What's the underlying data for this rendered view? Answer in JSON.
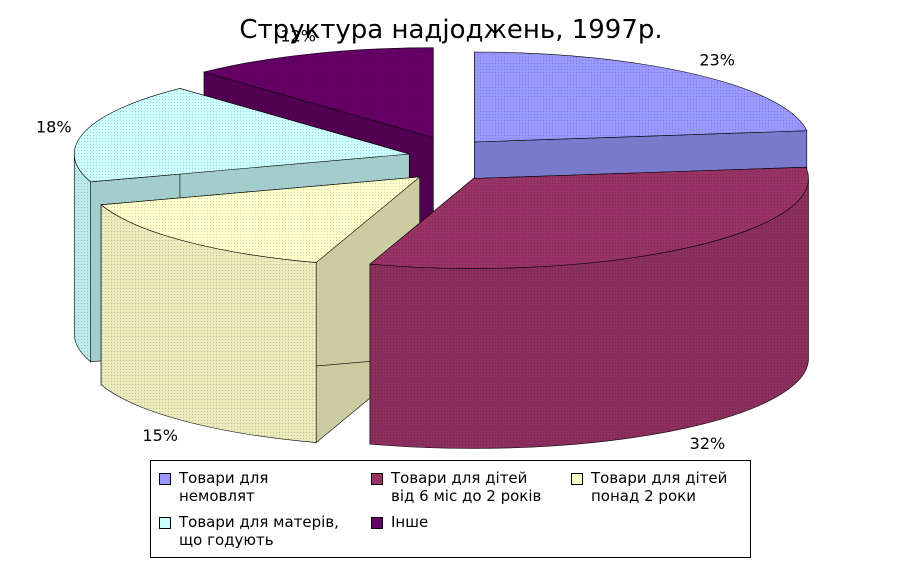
{
  "chart_data": {
    "type": "pie",
    "title": "Структура надjоджень, 1997р.",
    "categories": [
      "Товари для\nнемовлят",
      "Товари для дітей\nвід 6 міс до 2 років",
      "Товари для дітей\nпонад 2 роки",
      "Товари для матерів,\nщо годують",
      "Інше"
    ],
    "values": [
      23,
      32,
      15,
      18,
      12
    ],
    "value_labels": [
      "23%",
      "32%",
      "15%",
      "18%",
      "12%"
    ],
    "colors": [
      "#9999ff",
      "#993366",
      "#ffffcc",
      "#ccffff",
      "#660066"
    ],
    "exploded": true,
    "legend_position": "bottom"
  }
}
